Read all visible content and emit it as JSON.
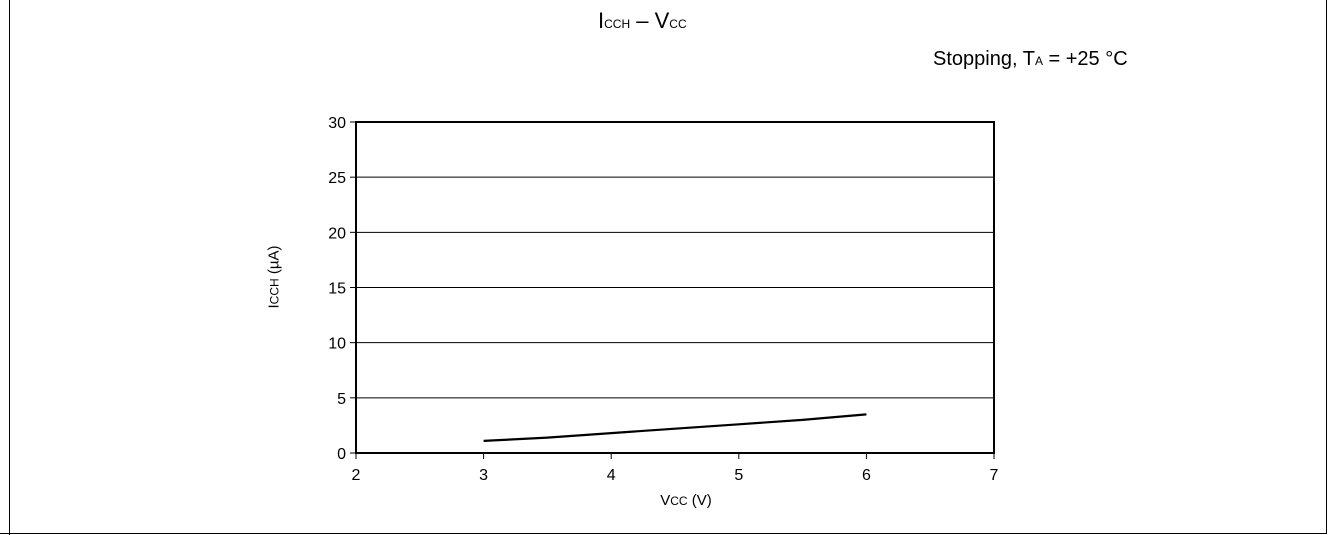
{
  "chart_data": {
    "type": "line",
    "title": {
      "main": "I",
      "sub": "CCH",
      "sep": " – ",
      "main2": "V",
      "sub2": "CC"
    },
    "condition": {
      "prefix": "Stopping, T",
      "sub": "A",
      "suffix": " = +25 °C"
    },
    "xlabel": {
      "main": "V",
      "sub": "CC",
      "suffix": " (V)"
    },
    "ylabel": {
      "main": "I",
      "sub": "CCH",
      "suffix": " (µA)"
    },
    "xlim": [
      2,
      7
    ],
    "ylim": [
      0,
      30
    ],
    "xticks": [
      "2",
      "3",
      "4",
      "5",
      "6",
      "7"
    ],
    "yticks": [
      "0",
      "5",
      "10",
      "15",
      "20",
      "25",
      "30"
    ],
    "grid": "horizontal",
    "series": [
      {
        "x": [
          3.0,
          3.5,
          4.0,
          4.5,
          5.0,
          5.5,
          6.0
        ],
        "y": [
          1.1,
          1.4,
          1.8,
          2.2,
          2.6,
          3.0,
          3.5
        ]
      }
    ]
  }
}
